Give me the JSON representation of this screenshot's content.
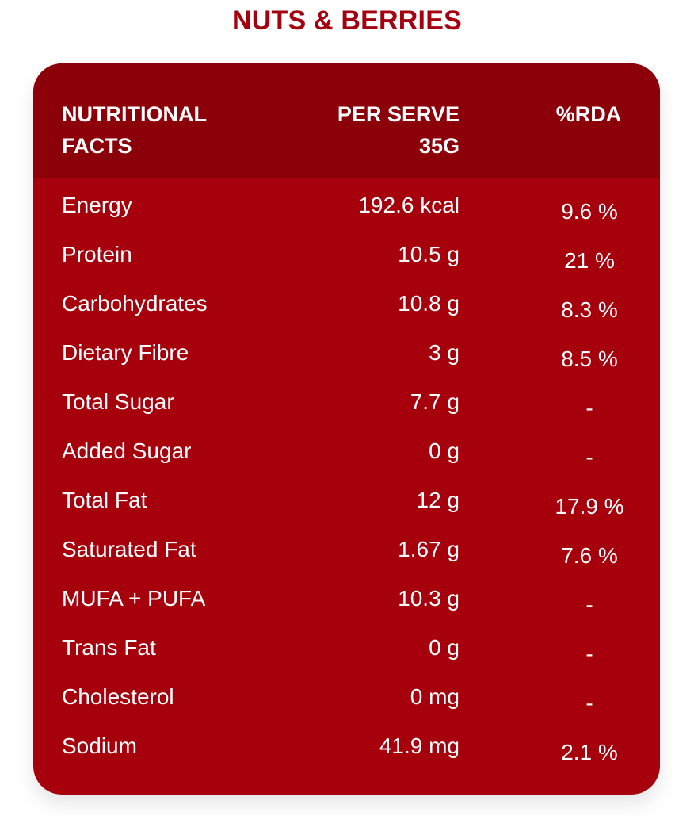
{
  "title": "NUTS & BERRIES",
  "table": {
    "header": {
      "col1_line1": "NUTRITIONAL",
      "col1_line2": "FACTS",
      "col2_line1": "PER SERVE",
      "col2_line2": "35G",
      "col3": "%RDA"
    },
    "rows": [
      {
        "name": "Energy",
        "value": "192.6 kcal",
        "rda": "9.6 %"
      },
      {
        "name": "Protein",
        "value": "10.5 g",
        "rda": "21 %"
      },
      {
        "name": "Carbohydrates",
        "value": "10.8 g",
        "rda": "8.3 %"
      },
      {
        "name": "Dietary Fibre",
        "value": "3 g",
        "rda": "8.5 %"
      },
      {
        "name": "Total Sugar",
        "value": "7.7 g",
        "rda": "-"
      },
      {
        "name": "Added Sugar",
        "value": "0 g",
        "rda": "-"
      },
      {
        "name": "Total Fat",
        "value": "12 g",
        "rda": "17.9 %"
      },
      {
        "name": "Saturated Fat",
        "value": "1.67 g",
        "rda": "7.6 %"
      },
      {
        "name": "MUFA + PUFA",
        "value": "10.3 g",
        "rda": "-"
      },
      {
        "name": "Trans Fat",
        "value": "0 g",
        "rda": "-"
      },
      {
        "name": "Cholesterol",
        "value": "0 mg",
        "rda": "-"
      },
      {
        "name": "Sodium",
        "value": "41.9 mg",
        "rda": "2.1 %"
      }
    ]
  },
  "colors": {
    "brand_red": "#a4000f",
    "card_bg": "#a6000c",
    "header_bg": "#8c000a"
  }
}
